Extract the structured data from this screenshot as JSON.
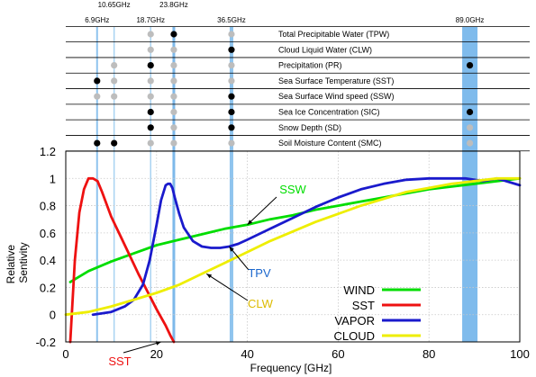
{
  "bands": [
    {
      "label": "6.9GHz",
      "freq": 6.9
    },
    {
      "label": "10.65GHz",
      "freq": 10.65
    },
    {
      "label": "18.7GHz",
      "freq": 18.7
    },
    {
      "label": "23.8GHz",
      "freq": 23.8
    },
    {
      "label": "36.5GHz",
      "freq": 36.5
    },
    {
      "label": "89.0GHz",
      "freq": 89.0
    }
  ],
  "table": {
    "rows": [
      {
        "label": "Total Precipitable Water (TPW)",
        "dots": [
          "",
          "",
          "secondary",
          "primary",
          "secondary",
          ""
        ]
      },
      {
        "label": "Cloud Liquid Water (CLW)",
        "dots": [
          "",
          "",
          "secondary",
          "secondary",
          "primary",
          ""
        ]
      },
      {
        "label": "Precipitation (PR)",
        "dots": [
          "",
          "secondary",
          "primary",
          "secondary",
          "secondary",
          "primary"
        ]
      },
      {
        "label": "Sea Surface Temperature  (SST)",
        "dots": [
          "primary",
          "secondary",
          "secondary",
          "secondary",
          "secondary",
          ""
        ]
      },
      {
        "label": "Sea Surface Wind speed (SSW)",
        "dots": [
          "secondary",
          "secondary",
          "secondary",
          "secondary",
          "primary",
          ""
        ]
      },
      {
        "label": "Sea Ice Concentration  (SIC)",
        "dots": [
          "",
          "",
          "primary",
          "secondary",
          "primary",
          "primary"
        ]
      },
      {
        "label": "Snow Depth (SD)",
        "dots": [
          "",
          "",
          "primary",
          "secondary",
          "primary",
          "secondary"
        ]
      },
      {
        "label": "Soil Moisture Content (SMC)",
        "dots": [
          "primary",
          "primary",
          "secondary",
          "secondary",
          "secondary",
          "secondary"
        ]
      }
    ]
  },
  "chart_data": {
    "type": "line",
    "xlabel": "Frequency [GHz]",
    "ylabel": "Relative Sentivity",
    "xlim": [
      0,
      100
    ],
    "ylim": [
      -0.2,
      1.2
    ],
    "xticks": [
      0,
      20,
      40,
      60,
      80,
      100
    ],
    "yticks": [
      -0.2,
      0,
      0.2,
      0.4,
      0.6,
      0.8,
      1,
      1.2
    ],
    "grid": true,
    "legend_position": "bottom-right",
    "series": [
      {
        "name": "WIND",
        "color": "#00dd00",
        "x": [
          1,
          5,
          10,
          15,
          20,
          25,
          30,
          35,
          40,
          45,
          50,
          55,
          60,
          65,
          70,
          75,
          80,
          85,
          90,
          95,
          100
        ],
        "y": [
          0.24,
          0.32,
          0.39,
          0.45,
          0.51,
          0.55,
          0.59,
          0.63,
          0.66,
          0.7,
          0.73,
          0.77,
          0.8,
          0.83,
          0.86,
          0.89,
          0.92,
          0.94,
          0.96,
          0.98,
          1.0
        ]
      },
      {
        "name": "SST",
        "color": "#ee1111",
        "x": [
          1,
          2,
          3,
          4,
          5,
          6,
          7,
          8,
          10,
          12,
          14,
          16,
          18,
          20,
          21,
          22,
          23,
          23.8
        ],
        "y": [
          -0.2,
          0.4,
          0.75,
          0.92,
          1.0,
          1.0,
          0.98,
          0.9,
          0.72,
          0.58,
          0.44,
          0.3,
          0.17,
          0.04,
          -0.02,
          -0.08,
          -0.15,
          -0.2
        ]
      },
      {
        "name": "VAPOR",
        "color": "#1a1acc",
        "x": [
          6,
          10,
          13,
          15,
          17,
          18.5,
          20,
          21,
          22,
          22.5,
          23,
          23.5,
          24,
          25,
          26,
          28,
          30,
          32,
          34,
          36,
          38,
          40,
          45,
          50,
          55,
          60,
          65,
          70,
          75,
          80,
          85,
          88,
          90,
          92,
          95,
          100
        ],
        "y": [
          0.0,
          0.02,
          0.06,
          0.11,
          0.22,
          0.4,
          0.66,
          0.84,
          0.95,
          0.96,
          0.96,
          0.93,
          0.86,
          0.74,
          0.64,
          0.54,
          0.5,
          0.49,
          0.49,
          0.5,
          0.52,
          0.55,
          0.63,
          0.71,
          0.79,
          0.86,
          0.92,
          0.96,
          0.99,
          1.0,
          1.0,
          1.0,
          0.99,
          0.98,
          1.0,
          0.95
        ]
      },
      {
        "name": "CLOUD",
        "color": "#eeee00",
        "x": [
          0,
          5,
          10,
          15,
          20,
          25,
          30,
          35,
          40,
          45,
          50,
          55,
          60,
          65,
          70,
          75,
          80,
          85,
          90,
          95,
          100
        ],
        "y": [
          0.0,
          0.02,
          0.06,
          0.11,
          0.16,
          0.22,
          0.3,
          0.38,
          0.46,
          0.54,
          0.61,
          0.68,
          0.74,
          0.8,
          0.85,
          0.9,
          0.93,
          0.96,
          0.98,
          1.0,
          1.0
        ]
      }
    ],
    "annotations": [
      {
        "text": "SSW",
        "color": "#00dd00",
        "points_to": [
          40,
          0.66
        ]
      },
      {
        "text": "TPV",
        "color": "#1a66cc",
        "points_to": [
          36,
          0.5
        ]
      },
      {
        "text": "CLW",
        "color": "#ddbb00",
        "points_to": [
          31,
          0.3
        ]
      },
      {
        "text": "SST",
        "color": "#ee1111",
        "points_to": [
          21,
          -0.2
        ]
      }
    ]
  }
}
